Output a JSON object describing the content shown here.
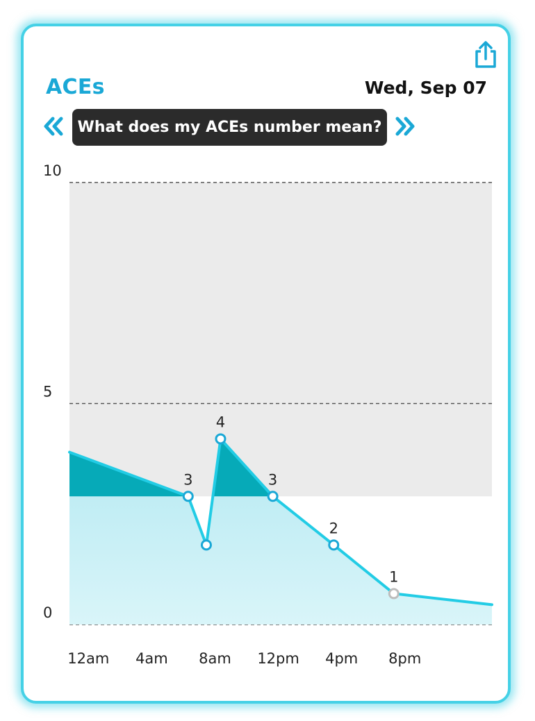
{
  "card": {
    "title": "ACEs",
    "date": "Wed, Sep 07",
    "info_button_label": "What does my ACEs number mean?",
    "prev_icon": "double-chevron-left-icon",
    "next_icon": "double-chevron-right-icon",
    "share_icon": "share-icon"
  },
  "colors": {
    "accent": "#1aa8d6",
    "line": "#22cce5",
    "fill_light": "#c6eff5",
    "fill_dark": "#06aab8",
    "band": "#ebebeb",
    "card_border": "#45d1e6"
  },
  "chart_data": {
    "type": "line",
    "title": "",
    "xlabel": "",
    "ylabel": "",
    "ylim": [
      0,
      10
    ],
    "y_ticks": [
      "0",
      "5",
      "10"
    ],
    "x_ticks": [
      "12am",
      "4am",
      "8am",
      "12pm",
      "4pm",
      "8pm"
    ],
    "x_range_hours": [
      -1.2,
      25.5
    ],
    "band_range": [
      2.9,
      10
    ],
    "series": [
      {
        "points": [
          {
            "x": -1.2,
            "y": 3.9,
            "label": ""
          },
          {
            "x": 6.3,
            "y": 2.9,
            "label": "3"
          },
          {
            "x": 7.45,
            "y": 1.8,
            "label": ""
          },
          {
            "x": 8.35,
            "y": 4.2,
            "label": "4"
          },
          {
            "x": 11.65,
            "y": 2.9,
            "label": "3"
          },
          {
            "x": 15.5,
            "y": 1.8,
            "label": "2"
          },
          {
            "x": 19.3,
            "y": 0.7,
            "label": "1"
          },
          {
            "x": 25.5,
            "y": 0.45,
            "label": ""
          }
        ]
      }
    ]
  }
}
